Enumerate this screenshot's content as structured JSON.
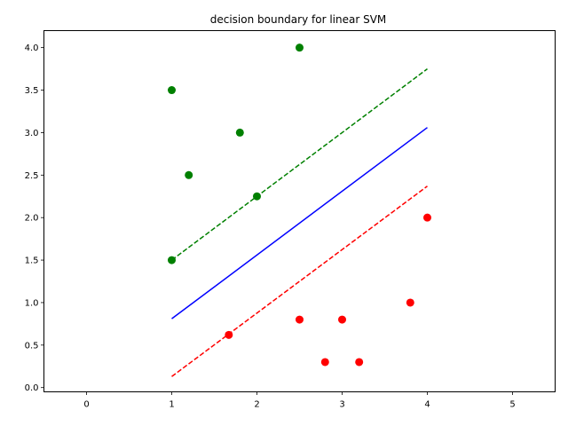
{
  "chart_data": {
    "type": "scatter",
    "title": "decision boundary for linear SVM",
    "xlabel": "",
    "ylabel": "",
    "xlim": [
      -0.5,
      5.5
    ],
    "ylim": [
      -0.05,
      4.2
    ],
    "grid": false,
    "x_ticks": [
      0,
      1,
      2,
      3,
      4,
      5
    ],
    "x_tick_labels": [
      "0",
      "1",
      "2",
      "3",
      "4",
      "5"
    ],
    "y_ticks": [
      0.0,
      0.5,
      1.0,
      1.5,
      2.0,
      2.5,
      3.0,
      3.5,
      4.0
    ],
    "y_tick_labels": [
      "0.0",
      "0.5",
      "1.0",
      "1.5",
      "2.0",
      "2.5",
      "3.0",
      "3.5",
      "4.0"
    ],
    "series": [
      {
        "kind": "scatter",
        "color": "#008000",
        "points": [
          [
            1.0,
            3.5
          ],
          [
            1.8,
            3.0
          ],
          [
            2.5,
            4.0
          ],
          [
            1.2,
            2.5
          ],
          [
            2.0,
            2.25
          ],
          [
            1.0,
            1.5
          ]
        ]
      },
      {
        "kind": "scatter",
        "color": "#ff0000",
        "points": [
          [
            4.0,
            2.0
          ],
          [
            3.8,
            1.0
          ],
          [
            2.5,
            0.8
          ],
          [
            3.0,
            0.8
          ],
          [
            1.67,
            0.62
          ],
          [
            2.8,
            0.3
          ],
          [
            3.2,
            0.3
          ]
        ]
      },
      {
        "kind": "line",
        "style": "solid",
        "color": "#0000ff",
        "points": [
          [
            1.0,
            0.81
          ],
          [
            4.0,
            3.06
          ]
        ]
      },
      {
        "kind": "line",
        "style": "dashed",
        "color": "#008000",
        "points": [
          [
            1.0,
            1.5
          ],
          [
            4.0,
            3.75
          ]
        ]
      },
      {
        "kind": "line",
        "style": "dashed",
        "color": "#ff0000",
        "points": [
          [
            1.0,
            0.13
          ],
          [
            4.0,
            2.37
          ]
        ]
      }
    ]
  }
}
